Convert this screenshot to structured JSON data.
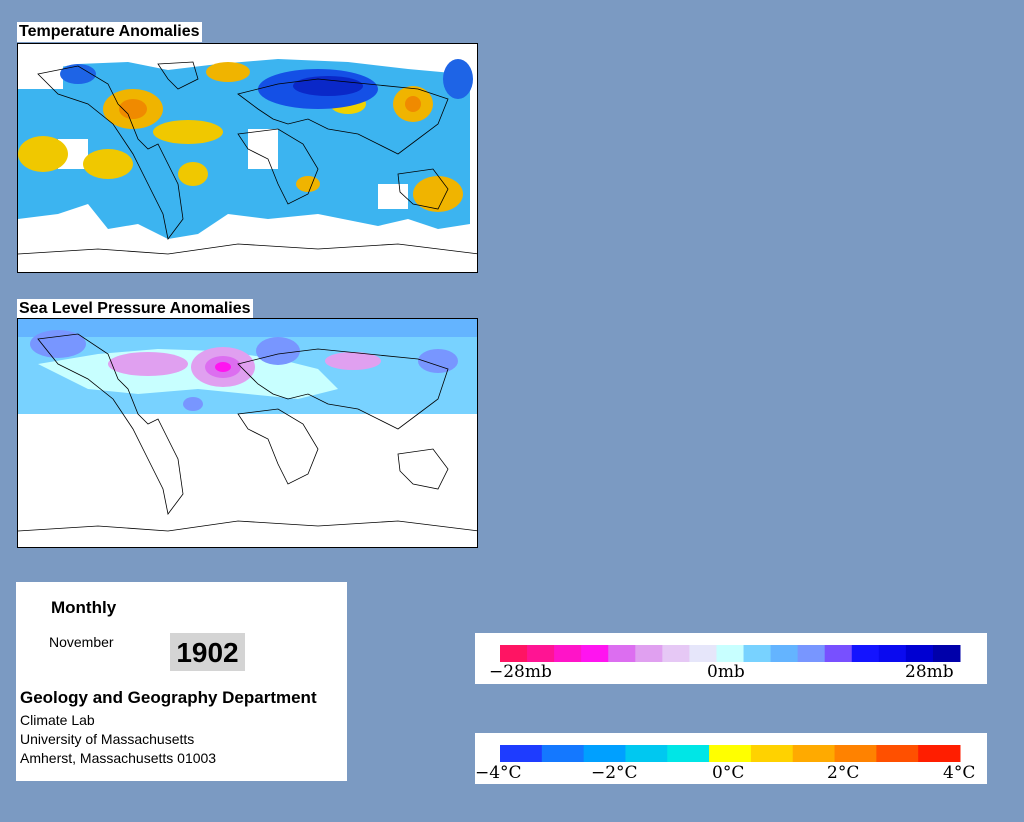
{
  "panels": {
    "temperature_title": "Temperature Anomalies",
    "pressure_title": "Sea Level Pressure Anomalies"
  },
  "info": {
    "period": "Monthly",
    "month": "November",
    "year": "1902",
    "department": "Geology and Geography Department",
    "lab": "Climate Lab",
    "university": "University of Massachusetts",
    "address": "Amherst, Massachusetts 01003"
  },
  "pressure_scale": {
    "colors": [
      "#ff1463",
      "#ff1493",
      "#ff14c8",
      "#ff14f0",
      "#dc6ef0",
      "#e0a0f0",
      "#e6c8f5",
      "#e6e6fa",
      "#c8ffff",
      "#78d2ff",
      "#64b4ff",
      "#7896ff",
      "#7850ff",
      "#1414ff",
      "#0a0af0",
      "#0000d2",
      "#0000aa"
    ],
    "labels": [
      "−28mb",
      "0mb",
      "28mb"
    ]
  },
  "temperature_scale": {
    "colors": [
      "#1e3cff",
      "#1478ff",
      "#00a0ff",
      "#00c8f0",
      "#00e6e6",
      "#ffff00",
      "#ffd200",
      "#ffaa00",
      "#ff8200",
      "#ff5000",
      "#ff1e00"
    ],
    "labels": [
      "−4°C",
      "−2°C",
      "0°C",
      "2°C",
      "4°C"
    ]
  },
  "colors": {
    "background": "#7b9ac2",
    "ocean_blue": "#3cb4f0",
    "warm": "#f0b400",
    "cold": "#1450e6"
  }
}
